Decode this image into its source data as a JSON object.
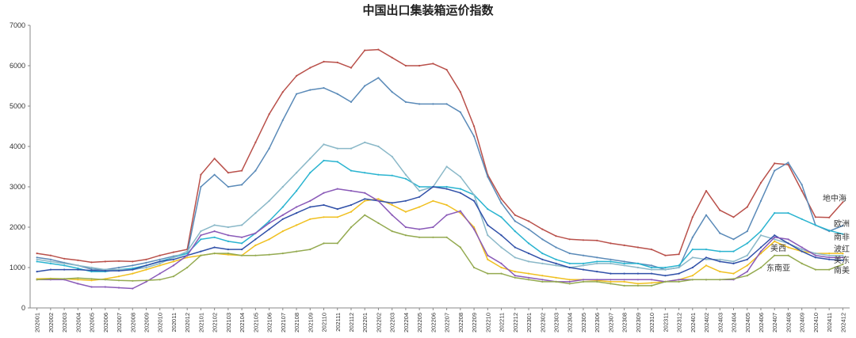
{
  "chart_data": {
    "type": "line",
    "title": "中国出口集装箱运价指数",
    "xlabel": "",
    "ylabel": "",
    "ylim": [
      0,
      7000
    ],
    "yticks": [
      0,
      1000,
      2000,
      3000,
      4000,
      5000,
      6000,
      7000
    ],
    "grid": false,
    "legend": "none (labels at right end of lines)",
    "categories": [
      "202001",
      "202002",
      "202003",
      "202004",
      "202005",
      "202006",
      "202007",
      "202008",
      "202009",
      "202010",
      "202011",
      "202012",
      "202101",
      "202102",
      "202103",
      "202104",
      "202105",
      "202106",
      "202107",
      "202108",
      "202109",
      "202110",
      "202111",
      "202112",
      "202201",
      "202202",
      "202203",
      "202204",
      "202205",
      "202206",
      "202207",
      "202208",
      "202209",
      "202210",
      "202211",
      "202212",
      "202301",
      "202302",
      "202303",
      "202304",
      "202305",
      "202306",
      "202307",
      "202308",
      "202309",
      "202310",
      "202311",
      "202312",
      "202401",
      "202402",
      "202403",
      "202404",
      "202405",
      "202406",
      "202407",
      "202408",
      "202409",
      "202410",
      "202411",
      "202412"
    ],
    "series": [
      {
        "name": "地中海",
        "color": "#b9504a",
        "label_value": 2620,
        "values": [
          1350,
          1300,
          1220,
          1180,
          1130,
          1150,
          1160,
          1150,
          1200,
          1300,
          1380,
          1450,
          3300,
          3700,
          3350,
          3400,
          4100,
          4800,
          5350,
          5750,
          5950,
          6100,
          6080,
          5950,
          6380,
          6400,
          6200,
          6000,
          6000,
          6050,
          5900,
          5350,
          4500,
          3300,
          2700,
          2300,
          2150,
          1950,
          1780,
          1700,
          1680,
          1670,
          1600,
          1550,
          1500,
          1450,
          1300,
          1330,
          2250,
          2900,
          2420,
          2250,
          2500,
          3100,
          3580,
          3550,
          2900,
          2250,
          2240,
          2620
        ]
      },
      {
        "name": "欧洲",
        "color": "#5a8ab8",
        "label_value": 2040,
        "values": [
          1250,
          1200,
          1120,
          1050,
          960,
          950,
          1000,
          1050,
          1120,
          1200,
          1280,
          1350,
          3000,
          3300,
          3000,
          3050,
          3400,
          3950,
          4650,
          5300,
          5400,
          5450,
          5300,
          5100,
          5500,
          5700,
          5350,
          5100,
          5050,
          5050,
          5050,
          4850,
          4250,
          3250,
          2600,
          2150,
          1950,
          1700,
          1500,
          1350,
          1300,
          1250,
          1200,
          1150,
          1100,
          1050,
          950,
          1000,
          1750,
          2300,
          1850,
          1700,
          1900,
          2650,
          3400,
          3600,
          3050,
          2050,
          1900,
          2040
        ]
      },
      {
        "name": "南非",
        "color": "#2ab4d0",
        "label_value": 1830,
        "values": [
          1150,
          1100,
          1050,
          980,
          900,
          900,
          950,
          980,
          1050,
          1150,
          1250,
          1350,
          1700,
          1750,
          1650,
          1600,
          1850,
          2150,
          2500,
          2900,
          3350,
          3650,
          3620,
          3400,
          3350,
          3300,
          3280,
          3200,
          3000,
          3000,
          3000,
          2950,
          2800,
          2450,
          2250,
          1900,
          1600,
          1350,
          1200,
          1100,
          1100,
          1150,
          1150,
          1100,
          1100,
          1000,
          1000,
          1050,
          1450,
          1450,
          1400,
          1400,
          1600,
          1900,
          2350,
          2350,
          2200,
          2050,
          1920,
          1830
        ]
      },
      {
        "name": "美西",
        "color": "#f0c020",
        "label_value": 1350,
        "values": [
          720,
          730,
          720,
          700,
          680,
          720,
          780,
          850,
          950,
          1050,
          1150,
          1250,
          1300,
          1350,
          1320,
          1300,
          1550,
          1700,
          1900,
          2050,
          2200,
          2250,
          2250,
          2380,
          2650,
          2700,
          2550,
          2380,
          2500,
          2650,
          2550,
          2350,
          2000,
          1200,
          1000,
          900,
          850,
          800,
          750,
          700,
          700,
          680,
          650,
          650,
          600,
          620,
          650,
          700,
          800,
          1050,
          900,
          850,
          1050,
          1350,
          1650,
          1500,
          1400,
          1350,
          1350,
          1350
        ]
      },
      {
        "name": "波红",
        "color": "#8ab8c8",
        "label_value": 1300,
        "values": [
          1200,
          1150,
          1100,
          1050,
          1000,
          950,
          950,
          950,
          1000,
          1100,
          1250,
          1400,
          1900,
          2050,
          2000,
          2050,
          2350,
          2650,
          3000,
          3350,
          3700,
          4050,
          3950,
          3950,
          4100,
          4000,
          3750,
          3300,
          2900,
          3000,
          3500,
          3250,
          2800,
          1800,
          1500,
          1250,
          1150,
          1100,
          1050,
          1000,
          1050,
          1100,
          1100,
          1050,
          1000,
          950,
          950,
          1000,
          1250,
          1200,
          1200,
          1150,
          1300,
          1800,
          1700,
          1600,
          1450,
          1350,
          1300,
          1300
        ]
      },
      {
        "name": "美东",
        "color": "#3050a8",
        "label_value": 1180,
        "values": [
          900,
          950,
          950,
          950,
          930,
          920,
          920,
          950,
          1050,
          1150,
          1200,
          1300,
          1400,
          1500,
          1450,
          1450,
          1700,
          1950,
          2200,
          2350,
          2500,
          2550,
          2450,
          2550,
          2700,
          2650,
          2600,
          2650,
          2750,
          3000,
          2950,
          2850,
          2650,
          2050,
          1800,
          1500,
          1350,
          1200,
          1100,
          1000,
          950,
          900,
          850,
          850,
          850,
          850,
          800,
          850,
          1000,
          1250,
          1150,
          1100,
          1200,
          1500,
          1800,
          1600,
          1400,
          1250,
          1200,
          1180
        ]
      },
      {
        "name": "东南亚",
        "color": "#8a5ab8",
        "label_value": 1250,
        "values": [
          700,
          700,
          700,
          600,
          520,
          520,
          500,
          480,
          650,
          850,
          1050,
          1300,
          1800,
          1900,
          1800,
          1750,
          1850,
          2100,
          2300,
          2500,
          2650,
          2850,
          2950,
          2900,
          2850,
          2650,
          2300,
          2000,
          1950,
          2000,
          2300,
          2400,
          1950,
          1300,
          1100,
          800,
          750,
          700,
          650,
          650,
          700,
          700,
          700,
          700,
          700,
          700,
          650,
          700,
          700,
          700,
          700,
          700,
          900,
          1400,
          1750,
          1700,
          1500,
          1300,
          1250,
          1250
        ]
      },
      {
        "name": "南美",
        "color": "#94aa50",
        "label_value": 1080,
        "values": [
          700,
          720,
          720,
          740,
          720,
          700,
          680,
          670,
          680,
          700,
          780,
          1000,
          1300,
          1350,
          1350,
          1300,
          1300,
          1320,
          1350,
          1400,
          1450,
          1600,
          1600,
          2000,
          2300,
          2100,
          1900,
          1800,
          1750,
          1750,
          1750,
          1500,
          1000,
          850,
          850,
          750,
          700,
          650,
          650,
          600,
          650,
          650,
          600,
          550,
          550,
          550,
          650,
          650,
          700,
          700,
          700,
          720,
          800,
          1000,
          1300,
          1300,
          1100,
          950,
          950,
          1080
        ]
      }
    ]
  }
}
